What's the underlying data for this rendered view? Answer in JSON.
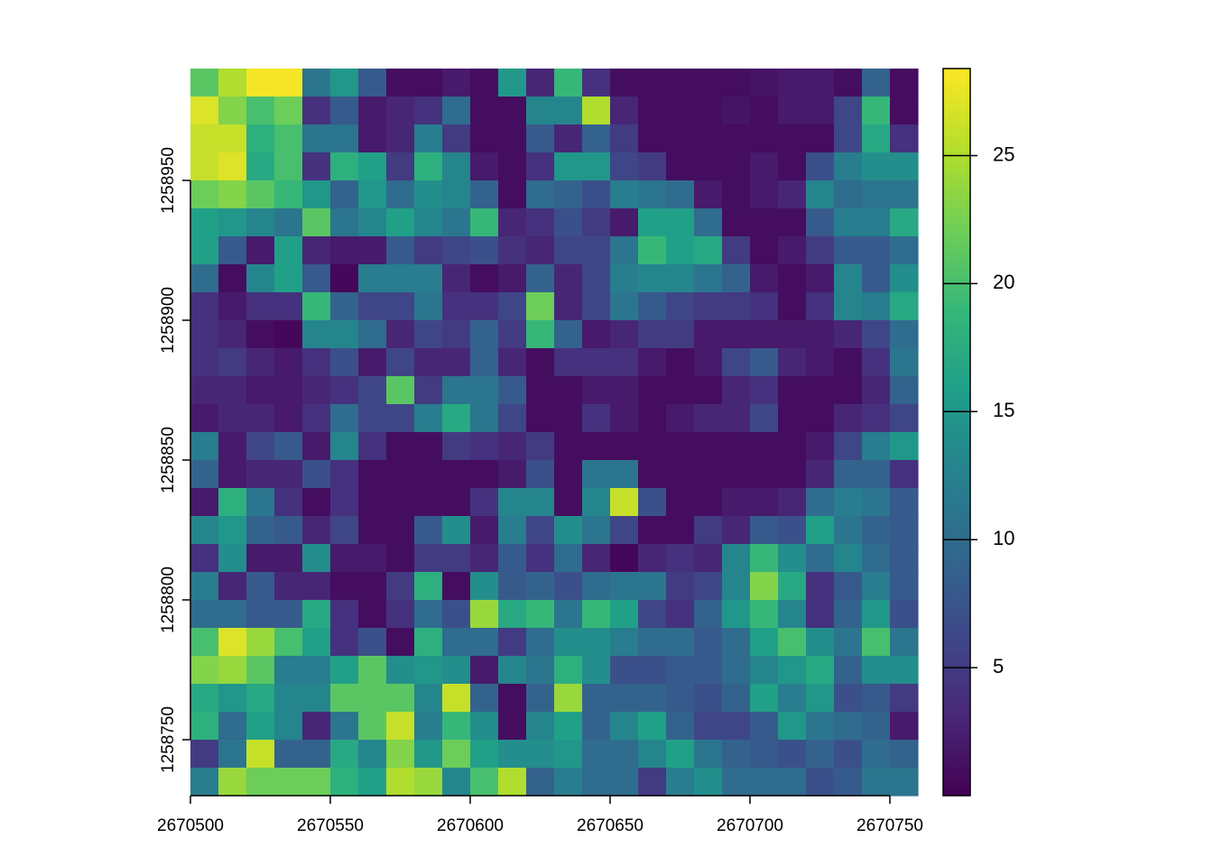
{
  "chart_data": {
    "type": "heatmap",
    "colormap": "viridis",
    "x": [
      2670505,
      2670515,
      2670525,
      2670535,
      2670545,
      2670555,
      2670565,
      2670575,
      2670585,
      2670595,
      2670605,
      2670615,
      2670625,
      2670635,
      2670645,
      2670655,
      2670665,
      2670675,
      2670685,
      2670695,
      2670705,
      2670715,
      2670725,
      2670735,
      2670745,
      2670755
    ],
    "y": [
      1258985,
      1258975,
      1258965,
      1258955,
      1258945,
      1258935,
      1258925,
      1258915,
      1258905,
      1258895,
      1258885,
      1258875,
      1258865,
      1258855,
      1258845,
      1258835,
      1258825,
      1258815,
      1258805,
      1258795,
      1258785,
      1258775,
      1258765,
      1258755,
      1258745,
      1258735
    ],
    "z": [
      [
        21,
        25,
        28,
        28,
        11,
        15,
        8,
        1,
        1,
        2,
        1,
        15,
        3,
        19,
        4,
        1,
        1,
        1,
        1,
        1,
        1.5,
        2,
        2,
        1,
        9,
        1
      ],
      [
        27,
        23,
        20,
        22,
        4,
        8,
        2,
        3,
        4,
        10,
        1,
        1,
        13,
        13,
        25,
        3,
        1,
        1,
        1,
        1.5,
        1,
        2,
        2,
        6,
        19,
        1
      ],
      [
        26,
        26,
        18,
        20,
        11,
        11,
        2,
        3,
        12,
        5,
        1,
        1,
        8,
        3,
        9,
        5,
        1,
        1,
        1,
        1,
        1,
        1,
        1,
        6,
        17,
        4
      ],
      [
        26,
        27,
        17,
        20,
        4,
        18,
        16,
        5,
        18,
        13,
        2,
        1,
        4,
        15,
        15,
        6,
        5,
        1,
        1,
        1,
        2,
        1,
        7,
        12,
        14,
        14
      ],
      [
        22,
        23,
        21,
        19,
        15,
        9,
        15,
        10,
        14,
        13,
        9,
        1,
        10,
        9,
        7,
        12,
        11,
        10,
        2,
        1,
        2,
        3,
        13,
        10,
        11,
        11
      ],
      [
        16,
        15,
        13,
        11,
        21,
        11,
        13,
        16,
        13,
        11,
        19,
        3,
        4,
        7,
        5,
        2,
        16,
        16,
        10,
        1,
        1,
        1,
        8,
        12,
        12,
        17
      ],
      [
        16,
        8,
        2,
        16,
        3,
        2,
        2,
        8,
        5,
        6,
        7,
        4,
        3,
        6,
        6,
        11,
        19,
        16,
        17,
        5,
        1,
        2,
        5,
        8,
        8,
        10
      ],
      [
        10,
        1,
        13,
        16,
        8,
        0.5,
        12,
        12,
        12,
        3,
        1,
        2,
        9,
        3,
        6,
        12,
        13,
        13,
        11,
        9,
        2,
        1,
        2,
        13,
        8,
        14
      ],
      [
        4,
        2,
        4,
        4,
        19,
        9,
        6,
        6,
        11,
        4,
        4,
        6,
        22,
        3,
        6,
        11,
        8,
        6,
        5,
        5,
        4,
        1,
        4,
        13,
        12,
        17
      ],
      [
        4,
        3,
        1,
        0.5,
        13,
        13,
        10,
        3,
        6,
        5,
        9,
        5,
        19,
        9,
        2,
        3,
        5,
        5,
        2,
        2,
        2,
        2,
        2,
        3,
        6,
        10
      ],
      [
        4,
        5,
        3,
        2,
        4,
        7,
        2,
        6,
        3,
        3,
        9,
        3,
        1,
        4,
        4,
        4,
        2,
        1,
        2,
        6,
        8,
        3,
        2,
        1,
        4,
        11
      ],
      [
        3,
        3,
        2,
        2,
        3,
        4,
        6,
        21,
        5,
        11,
        11,
        8,
        1,
        1,
        2,
        2,
        1,
        1,
        1,
        3,
        4,
        1,
        1,
        1,
        3,
        9
      ],
      [
        2,
        3,
        3,
        2,
        4,
        10,
        6,
        6,
        12,
        17,
        11,
        6,
        1,
        1,
        4,
        2,
        1,
        2,
        3,
        3,
        6,
        1,
        1,
        3,
        4,
        6
      ],
      [
        12,
        2,
        6,
        8,
        2,
        13,
        4,
        1,
        1,
        5,
        4,
        3,
        5,
        1,
        1,
        1,
        1,
        1,
        1,
        1,
        1,
        1,
        2,
        6,
        12,
        15
      ],
      [
        9,
        2,
        3,
        3,
        7,
        4,
        1,
        1,
        1,
        1,
        1,
        2,
        7,
        1,
        11,
        11,
        1,
        1,
        1,
        1,
        1,
        1,
        3,
        9,
        9,
        4
      ],
      [
        2,
        18,
        11,
        4,
        1,
        4,
        1,
        1,
        1,
        1,
        4,
        13,
        13,
        1,
        13,
        26,
        7,
        1,
        1,
        2,
        2,
        3,
        10,
        12,
        11,
        8
      ],
      [
        13,
        15,
        9,
        8,
        3,
        6,
        1,
        1,
        8,
        14,
        2,
        12,
        6,
        14,
        11,
        6,
        1,
        1,
        5,
        3,
        8,
        7,
        16,
        11,
        9,
        8
      ],
      [
        4,
        14,
        2,
        2,
        14,
        2,
        2,
        1,
        5,
        5,
        3,
        8,
        4,
        10,
        3,
        0.5,
        3,
        4,
        3,
        13,
        19,
        14,
        10,
        13,
        10,
        8
      ],
      [
        12,
        3,
        8,
        3,
        3,
        1,
        1,
        5,
        18,
        1,
        14,
        8,
        9,
        7,
        10,
        11,
        11,
        5,
        6,
        13,
        23,
        17,
        4,
        8,
        12,
        8
      ],
      [
        10,
        10,
        8,
        8,
        17,
        4,
        1,
        4,
        10,
        7,
        24,
        17,
        19,
        11,
        19,
        16,
        6,
        4,
        9,
        15,
        19,
        13,
        4,
        9,
        15,
        7
      ],
      [
        20,
        27,
        24,
        20,
        16,
        4,
        7,
        1,
        18,
        10,
        10,
        5,
        10,
        14,
        14,
        12,
        10,
        10,
        8,
        10,
        16,
        20,
        14,
        11,
        20,
        11
      ],
      [
        23,
        24,
        21,
        12,
        12,
        16,
        21,
        14,
        15,
        14,
        2,
        13,
        11,
        18,
        14,
        7,
        7,
        8,
        8,
        10,
        13,
        15,
        17,
        9,
        14,
        14
      ],
      [
        17,
        15,
        17,
        13,
        13,
        21,
        21,
        21,
        13,
        26,
        9,
        1,
        9,
        24,
        9,
        9,
        9,
        8,
        7,
        9,
        16,
        12,
        15,
        7,
        8,
        5
      ],
      [
        18,
        10,
        16,
        13,
        3,
        11,
        21,
        26,
        12,
        19,
        14,
        1,
        13,
        16,
        9,
        13,
        16,
        9,
        6,
        6,
        8,
        15,
        11,
        10,
        9,
        2
      ],
      [
        5,
        11,
        26,
        9,
        9,
        17,
        13,
        23,
        15,
        22,
        16,
        14,
        14,
        15,
        10,
        10,
        13,
        16,
        11,
        9,
        8,
        7,
        9,
        7,
        10,
        9
      ],
      [
        12,
        24,
        22,
        22,
        22,
        18,
        16,
        25,
        24,
        13,
        20,
        25,
        9,
        12,
        10,
        10,
        5,
        12,
        14,
        10,
        10,
        10,
        7,
        8,
        11,
        11
      ]
    ],
    "xlim": [
      2670500,
      2670760
    ],
    "ylim": [
      1258730,
      1258990
    ],
    "xticks": [
      2670500,
      2670550,
      2670600,
      2670650,
      2670700,
      2670750
    ],
    "yticks": [
      1258750,
      1258800,
      1258850,
      1258900,
      1258950
    ],
    "zlim": [
      0,
      28.4
    ],
    "zticks": [
      5,
      10,
      15,
      20,
      25
    ]
  }
}
